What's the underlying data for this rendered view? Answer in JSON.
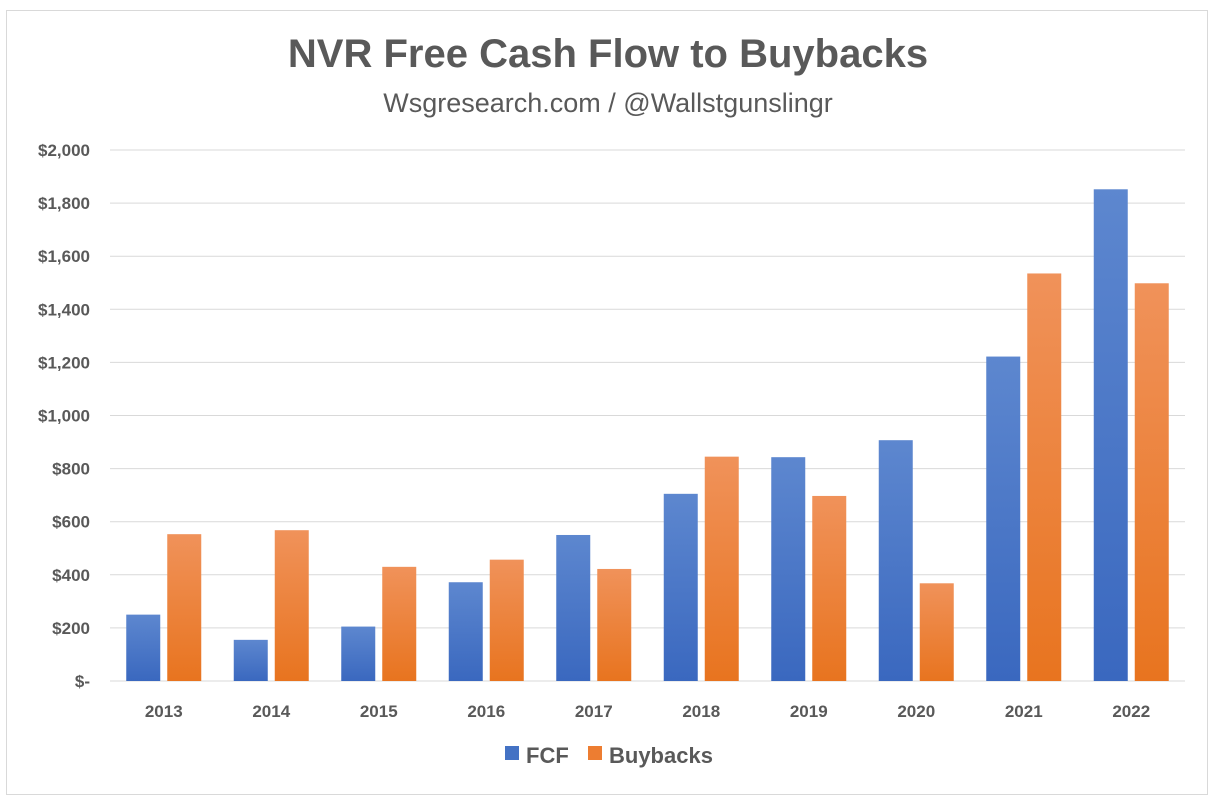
{
  "chart_data": {
    "type": "bar",
    "title": "NVR Free Cash Flow to Buybacks",
    "subtitle": "Wsgresearch.com / @Wallstgunslingr",
    "xlabel": "",
    "ylabel": "",
    "categories": [
      "2013",
      "2014",
      "2015",
      "2016",
      "2017",
      "2018",
      "2019",
      "2020",
      "2021",
      "2022"
    ],
    "series": [
      {
        "name": "FCF",
        "color": "#4472c4",
        "values": [
          250,
          155,
          205,
          372,
          550,
          705,
          843,
          907,
          1222,
          1852
        ]
      },
      {
        "name": "Buybacks",
        "color": "#ed7d31",
        "values": [
          553,
          568,
          430,
          457,
          422,
          845,
          697,
          368,
          1535,
          1498
        ]
      }
    ],
    "ylim": [
      0,
      2000
    ],
    "yticks": [
      0,
      200,
      400,
      600,
      800,
      1000,
      1200,
      1400,
      1600,
      1800,
      2000
    ],
    "ytick_labels": [
      "$-",
      "$200",
      "$400",
      "$600",
      "$800",
      "$1,000",
      "$1,200",
      "$1,400",
      "$1,600",
      "$1,800",
      "$2,000"
    ],
    "grid": true,
    "legend_position": "bottom"
  }
}
